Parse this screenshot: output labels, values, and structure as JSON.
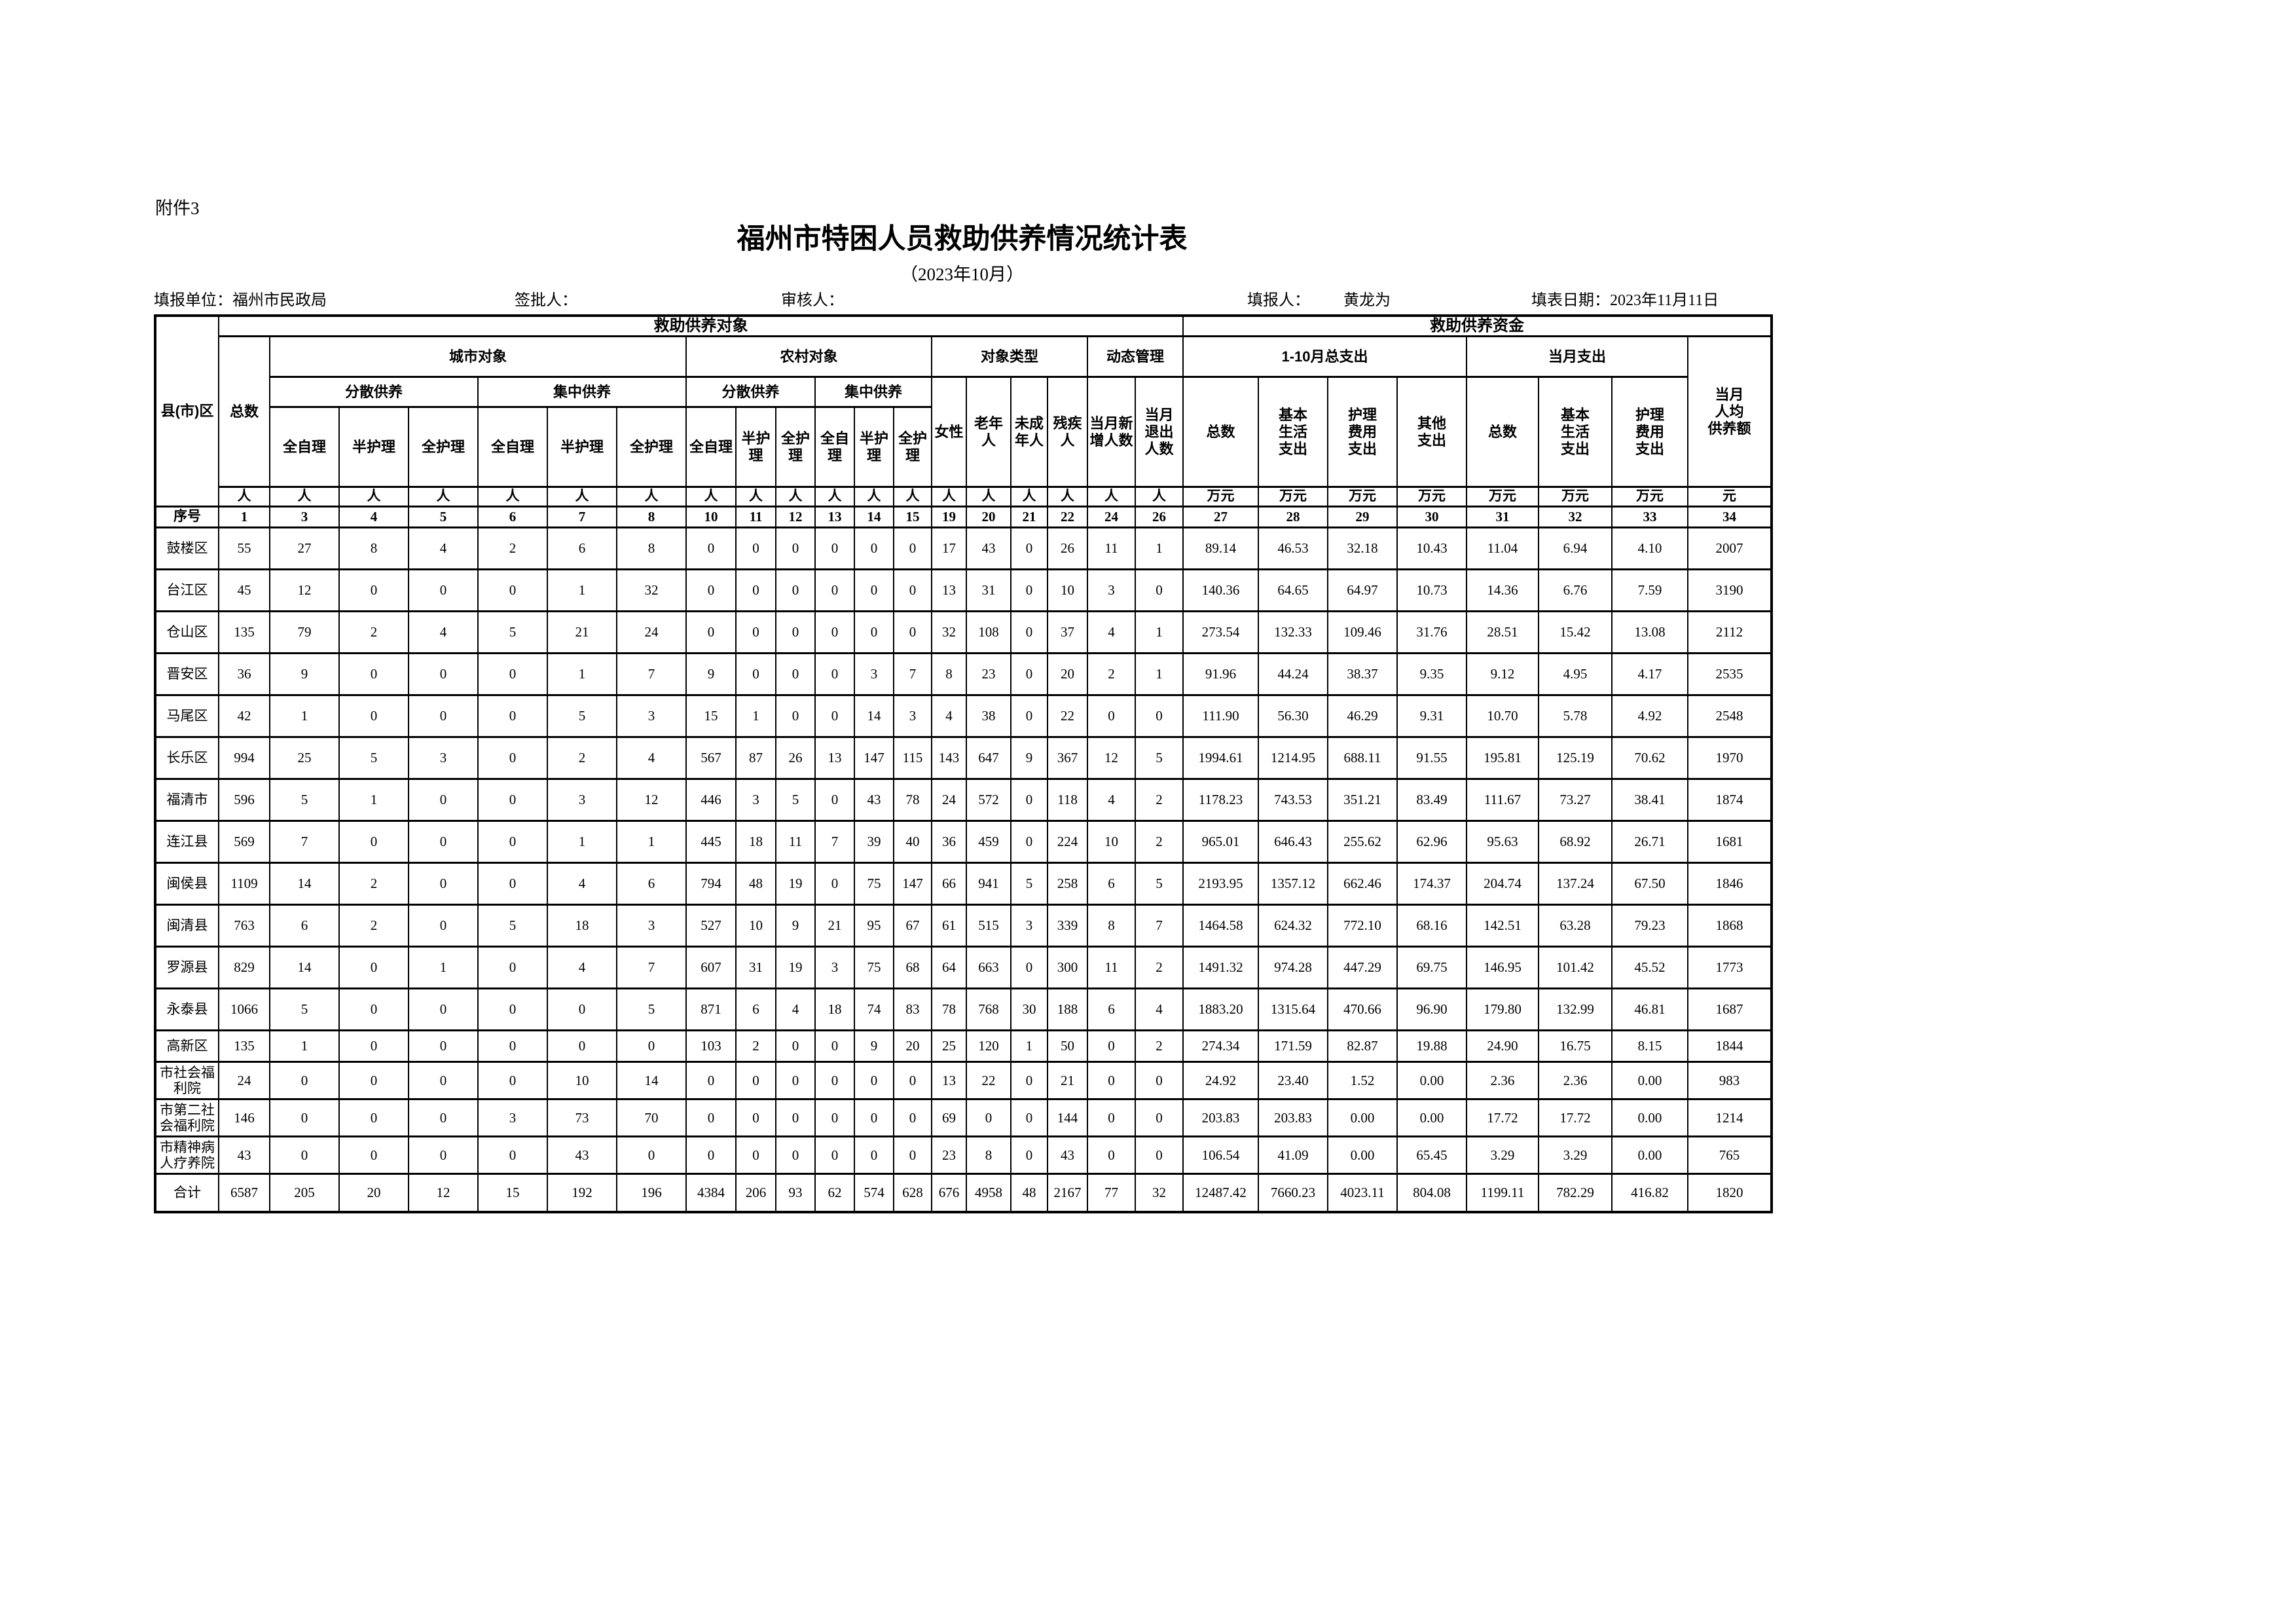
{
  "attachment": "附件3",
  "title": "福州市特困人员救助供养情况统计表",
  "subtitle": "（2023年10月）",
  "info": {
    "unit_label": "填报单位：福州市民政局",
    "sign_label": "签批人：",
    "review_label": "审核人：",
    "filler_label": "填报人：",
    "filler_name": "黄龙为",
    "date_label": "填表日期：2023年11月11日"
  },
  "header": {
    "region": "县(市)区",
    "targets": "救助供养对象",
    "funds": "救助供养资金",
    "total": "总数",
    "urban": "城市对象",
    "rural": "农村对象",
    "type": "对象类型",
    "dynamic": "动态管理",
    "spread": "分散供养",
    "central": "集中供养",
    "urban_leaf": [
      "全自理",
      "半护理",
      "全护理",
      "全自理",
      "半护理",
      "全护理"
    ],
    "rural_leaf": [
      "全自理",
      "半护\n理",
      "全护\n理",
      "全自\n理",
      "半护\n理",
      "全护\n理"
    ],
    "female": "女性",
    "elder": "老年\n人",
    "minor": "未成\n年人",
    "disabled": "残疾\n人",
    "added": "当月新\n增人数",
    "exited": "当月\n退出\n人数",
    "jan_oct": "1-10月总支出",
    "month": "当月支出",
    "fund_total": "总数",
    "basic": "基本\n生活\n支出",
    "nursing": "护理\n费用\n支出",
    "other": "其他\n支出",
    "per_capita": "当月\n人均\n供养额",
    "units": [
      "人",
      "人",
      "人",
      "人",
      "人",
      "人",
      "人",
      "人",
      "人",
      "人",
      "人",
      "人",
      "人",
      "人",
      "人",
      "人",
      "人",
      "人",
      "人",
      "万元",
      "万元",
      "万元",
      "万元",
      "万元",
      "万元",
      "万元",
      "元"
    ],
    "seq_label": "序号",
    "seq": [
      "1",
      "3",
      "4",
      "5",
      "6",
      "7",
      "8",
      "10",
      "11",
      "12",
      "13",
      "14",
      "15",
      "19",
      "20",
      "21",
      "22",
      "24",
      "26",
      "27",
      "28",
      "29",
      "30",
      "31",
      "32",
      "33",
      "34"
    ]
  },
  "rows": [
    {
      "name": "鼓楼区",
      "values": [
        "55",
        "27",
        "8",
        "4",
        "2",
        "6",
        "8",
        "0",
        "0",
        "0",
        "0",
        "0",
        "0",
        "17",
        "43",
        "0",
        "26",
        "11",
        "1",
        "89.14",
        "46.53",
        "32.18",
        "10.43",
        "11.04",
        "6.94",
        "4.10",
        "2007"
      ]
    },
    {
      "name": "台江区",
      "values": [
        "45",
        "12",
        "0",
        "0",
        "0",
        "1",
        "32",
        "0",
        "0",
        "0",
        "0",
        "0",
        "0",
        "13",
        "31",
        "0",
        "10",
        "3",
        "0",
        "140.36",
        "64.65",
        "64.97",
        "10.73",
        "14.36",
        "6.76",
        "7.59",
        "3190"
      ]
    },
    {
      "name": "仓山区",
      "values": [
        "135",
        "79",
        "2",
        "4",
        "5",
        "21",
        "24",
        "0",
        "0",
        "0",
        "0",
        "0",
        "0",
        "32",
        "108",
        "0",
        "37",
        "4",
        "1",
        "273.54",
        "132.33",
        "109.46",
        "31.76",
        "28.51",
        "15.42",
        "13.08",
        "2112"
      ]
    },
    {
      "name": "晋安区",
      "values": [
        "36",
        "9",
        "0",
        "0",
        "0",
        "1",
        "7",
        "9",
        "0",
        "0",
        "0",
        "3",
        "7",
        "8",
        "23",
        "0",
        "20",
        "2",
        "1",
        "91.96",
        "44.24",
        "38.37",
        "9.35",
        "9.12",
        "4.95",
        "4.17",
        "2535"
      ]
    },
    {
      "name": "马尾区",
      "values": [
        "42",
        "1",
        "0",
        "0",
        "0",
        "5",
        "3",
        "15",
        "1",
        "0",
        "0",
        "14",
        "3",
        "4",
        "38",
        "0",
        "22",
        "0",
        "0",
        "111.90",
        "56.30",
        "46.29",
        "9.31",
        "10.70",
        "5.78",
        "4.92",
        "2548"
      ]
    },
    {
      "name": "长乐区",
      "values": [
        "994",
        "25",
        "5",
        "3",
        "0",
        "2",
        "4",
        "567",
        "87",
        "26",
        "13",
        "147",
        "115",
        "143",
        "647",
        "9",
        "367",
        "12",
        "5",
        "1994.61",
        "1214.95",
        "688.11",
        "91.55",
        "195.81",
        "125.19",
        "70.62",
        "1970"
      ]
    },
    {
      "name": "福清市",
      "values": [
        "596",
        "5",
        "1",
        "0",
        "0",
        "3",
        "12",
        "446",
        "3",
        "5",
        "0",
        "43",
        "78",
        "24",
        "572",
        "0",
        "118",
        "4",
        "2",
        "1178.23",
        "743.53",
        "351.21",
        "83.49",
        "111.67",
        "73.27",
        "38.41",
        "1874"
      ]
    },
    {
      "name": "连江县",
      "values": [
        "569",
        "7",
        "0",
        "0",
        "0",
        "1",
        "1",
        "445",
        "18",
        "11",
        "7",
        "39",
        "40",
        "36",
        "459",
        "0",
        "224",
        "10",
        "2",
        "965.01",
        "646.43",
        "255.62",
        "62.96",
        "95.63",
        "68.92",
        "26.71",
        "1681"
      ]
    },
    {
      "name": "闽侯县",
      "values": [
        "1109",
        "14",
        "2",
        "0",
        "0",
        "4",
        "6",
        "794",
        "48",
        "19",
        "0",
        "75",
        "147",
        "66",
        "941",
        "5",
        "258",
        "6",
        "5",
        "2193.95",
        "1357.12",
        "662.46",
        "174.37",
        "204.74",
        "137.24",
        "67.50",
        "1846"
      ]
    },
    {
      "name": "闽清县",
      "values": [
        "763",
        "6",
        "2",
        "0",
        "5",
        "18",
        "3",
        "527",
        "10",
        "9",
        "21",
        "95",
        "67",
        "61",
        "515",
        "3",
        "339",
        "8",
        "7",
        "1464.58",
        "624.32",
        "772.10",
        "68.16",
        "142.51",
        "63.28",
        "79.23",
        "1868"
      ]
    },
    {
      "name": "罗源县",
      "values": [
        "829",
        "14",
        "0",
        "1",
        "0",
        "4",
        "7",
        "607",
        "31",
        "19",
        "3",
        "75",
        "68",
        "64",
        "663",
        "0",
        "300",
        "11",
        "2",
        "1491.32",
        "974.28",
        "447.29",
        "69.75",
        "146.95",
        "101.42",
        "45.52",
        "1773"
      ]
    },
    {
      "name": "永泰县",
      "values": [
        "1066",
        "5",
        "0",
        "0",
        "0",
        "0",
        "5",
        "871",
        "6",
        "4",
        "18",
        "74",
        "83",
        "78",
        "768",
        "30",
        "188",
        "6",
        "4",
        "1883.20",
        "1315.64",
        "470.66",
        "96.90",
        "179.80",
        "132.99",
        "46.81",
        "1687"
      ]
    },
    {
      "name": "高新区",
      "values": [
        "135",
        "1",
        "0",
        "0",
        "0",
        "0",
        "0",
        "103",
        "2",
        "0",
        "0",
        "9",
        "20",
        "25",
        "120",
        "1",
        "50",
        "0",
        "2",
        "274.34",
        "171.59",
        "82.87",
        "19.88",
        "24.90",
        "16.75",
        "8.15",
        "1844"
      ]
    },
    {
      "name": "市社会福利院",
      "values": [
        "24",
        "0",
        "0",
        "0",
        "0",
        "10",
        "14",
        "0",
        "0",
        "0",
        "0",
        "0",
        "0",
        "13",
        "22",
        "0",
        "21",
        "0",
        "0",
        "24.92",
        "23.40",
        "1.52",
        "0.00",
        "2.36",
        "2.36",
        "0.00",
        "983"
      ]
    },
    {
      "name": "市第二社会福利院",
      "values": [
        "146",
        "0",
        "0",
        "0",
        "3",
        "73",
        "70",
        "0",
        "0",
        "0",
        "0",
        "0",
        "0",
        "69",
        "0",
        "0",
        "144",
        "0",
        "0",
        "203.83",
        "203.83",
        "0.00",
        "0.00",
        "17.72",
        "17.72",
        "0.00",
        "1214"
      ]
    },
    {
      "name": "市精神病人疗养院",
      "values": [
        "43",
        "0",
        "0",
        "0",
        "0",
        "43",
        "0",
        "0",
        "0",
        "0",
        "0",
        "0",
        "0",
        "23",
        "8",
        "0",
        "43",
        "0",
        "0",
        "106.54",
        "41.09",
        "0.00",
        "65.45",
        "3.29",
        "3.29",
        "0.00",
        "765"
      ]
    },
    {
      "name": "合计",
      "values": [
        "6587",
        "205",
        "20",
        "12",
        "15",
        "192",
        "196",
        "4384",
        "206",
        "93",
        "62",
        "574",
        "628",
        "676",
        "4958",
        "48",
        "2167",
        "77",
        "32",
        "12487.42",
        "7660.23",
        "4023.11",
        "804.08",
        "1199.11",
        "782.29",
        "416.82",
        "1820"
      ]
    }
  ]
}
